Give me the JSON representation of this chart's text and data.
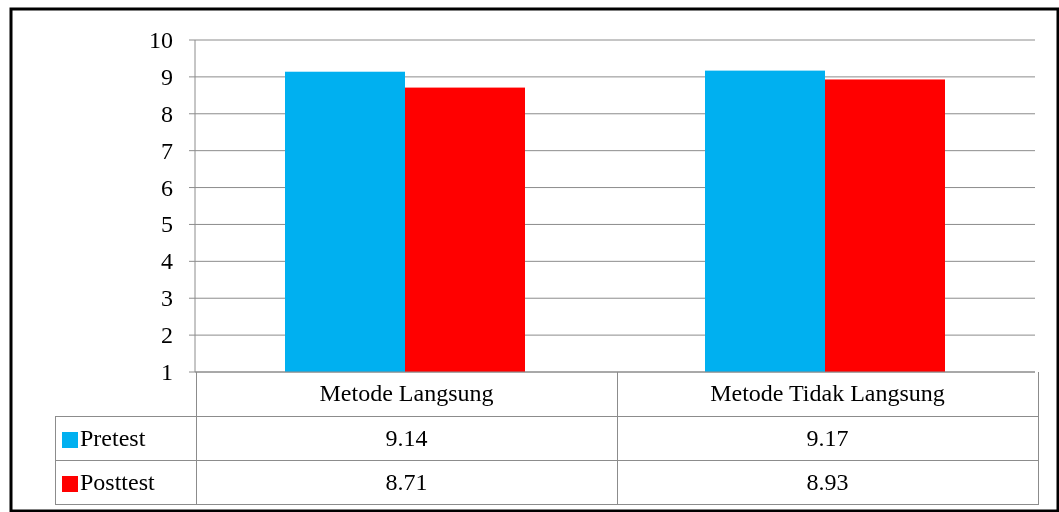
{
  "chart_data": {
    "type": "bar",
    "categories": [
      "Metode Langsung",
      "Metode Tidak Langsung"
    ],
    "series": [
      {
        "name": "Pretest",
        "color": "#00b0f0",
        "values": [
          9.14,
          9.17
        ]
      },
      {
        "name": "Posttest",
        "color": "#ff0000",
        "values": [
          8.71,
          8.93
        ]
      }
    ],
    "ylim": [
      1,
      10
    ],
    "yticks": [
      1,
      2,
      3,
      4,
      5,
      6,
      7,
      8,
      9,
      10
    ],
    "grid": true,
    "legend": "bottom left",
    "data_labels": true
  }
}
